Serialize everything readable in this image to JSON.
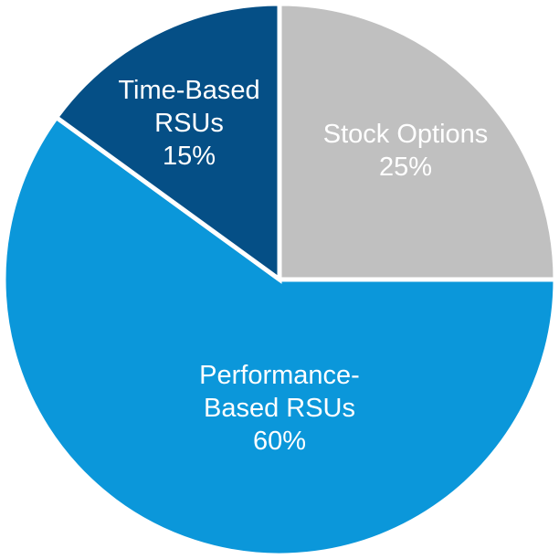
{
  "chart_data": {
    "type": "pie",
    "title": "",
    "start_angle_deg": 0,
    "direction": "clockwise",
    "slices": [
      {
        "name": "Stock Options",
        "label_lines": [
          "Stock Options",
          "25%"
        ],
        "value": 25,
        "color": "#c0c0c0"
      },
      {
        "name": "Performance-Based RSUs",
        "label_lines": [
          "Performance-",
          "Based RSUs",
          "60%"
        ],
        "value": 60,
        "color": "#0b97da"
      },
      {
        "name": "Time-Based RSUs",
        "label_lines": [
          "Time-Based",
          "RSUs",
          "15%"
        ],
        "value": 15,
        "color": "#054f86"
      }
    ]
  }
}
